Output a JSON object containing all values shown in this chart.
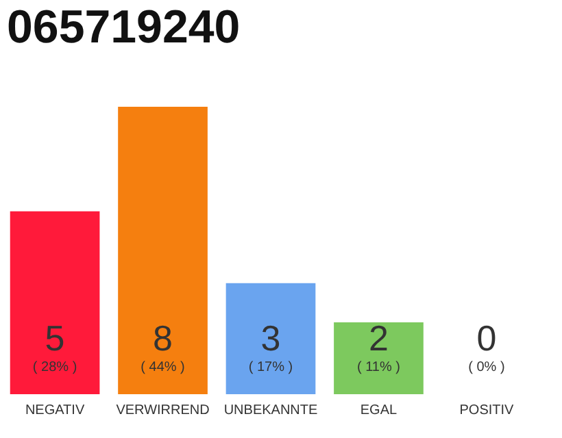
{
  "chart_data": {
    "type": "bar",
    "title": "065719240",
    "categories": [
      "NEGATIV",
      "VERWIRREND",
      "UNBEKANNTE",
      "EGAL",
      "POSITIV"
    ],
    "values": [
      28,
      44,
      17,
      11,
      0
    ],
    "colors": [
      "#ff1a3a",
      "#f57f0f",
      "#6aa4ef",
      "#7dc95e",
      "#9e9e9e"
    ],
    "value_labels": [
      "( 28% )",
      "( 44% )",
      "( 17% )",
      "( 11% )",
      "( 0% )"
    ],
    "annotations": [
      "5",
      "8",
      "3",
      "2",
      "0"
    ],
    "tick_labels": "x"
  }
}
